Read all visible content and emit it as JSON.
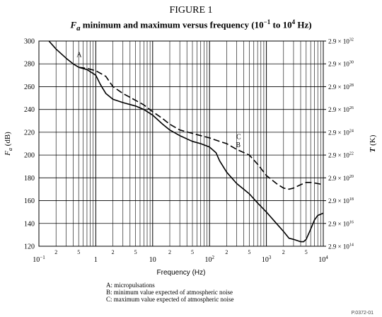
{
  "figure_label": "FIGURE 1",
  "title": {
    "sym": "F",
    "sub": "a",
    "text1": " minimum and maximum versus frequency (10",
    "exp1": "−1",
    "text2": " to 10",
    "exp2": "4",
    "text3": " Hz)"
  },
  "legend": [
    "A:  micropulsations",
    "B:  minimum value expected of atmospheric noise",
    "C:  maximum value expected of atmospheric noise"
  ],
  "ref": "P.0372-01",
  "chart_data": {
    "type": "line",
    "title": "Fa minimum and maximum versus frequency (10−1 to 104 Hz)",
    "xlabel": "Frequency (Hz)",
    "ylabel": "Fa (dB)",
    "y2label": "T (K)",
    "xscale": "log",
    "xlim": [
      0.1,
      10000
    ],
    "ylim": [
      120,
      300
    ],
    "grid": true,
    "decade_ticks": [
      {
        "x": 0.1,
        "label": "10",
        "exp": "−1"
      },
      {
        "x": 1,
        "label": "1",
        "exp": ""
      },
      {
        "x": 10,
        "label": "10",
        "exp": ""
      },
      {
        "x": 100,
        "label": "10",
        "exp": "2"
      },
      {
        "x": 1000,
        "label": "10",
        "exp": "3"
      },
      {
        "x": 10000,
        "label": "10",
        "exp": "4"
      }
    ],
    "minor_tick_labels": [
      "2",
      "5"
    ],
    "yticks": [
      120,
      140,
      160,
      180,
      200,
      220,
      240,
      260,
      280,
      300
    ],
    "right_ticks": [
      {
        "y": 300,
        "exp": "32"
      },
      {
        "y": 280,
        "exp": "30"
      },
      {
        "y": 260,
        "exp": "28"
      },
      {
        "y": 240,
        "exp": "26"
      },
      {
        "y": 220,
        "exp": "24"
      },
      {
        "y": 200,
        "exp": "22"
      },
      {
        "y": 180,
        "exp": "20"
      },
      {
        "y": 160,
        "exp": "18"
      },
      {
        "y": 140,
        "exp": "16"
      },
      {
        "y": 120,
        "exp": "14"
      }
    ],
    "right_tick_mantissa": "2.9 × 10",
    "series": [
      {
        "name": "A",
        "dash": false,
        "x": [
          0.15,
          0.2,
          0.3,
          0.4,
          0.5
        ],
        "y": [
          300,
          293,
          285,
          280,
          277
        ]
      },
      {
        "name": "B",
        "dash": false,
        "x": [
          0.5,
          0.7,
          1,
          1.2,
          1.5,
          2,
          3,
          5,
          7,
          10,
          15,
          20,
          30,
          50,
          70,
          100,
          130,
          150,
          200,
          300,
          500,
          700,
          1000,
          1500,
          2000,
          2500,
          3000,
          4000,
          4500,
          5000,
          6000,
          7000,
          8000,
          10000
        ],
        "y": [
          277,
          275,
          270,
          262,
          254,
          249,
          246,
          243,
          240,
          235,
          227,
          222,
          217,
          212,
          210,
          207,
          202,
          195,
          185,
          175,
          166,
          158,
          150,
          140,
          133,
          127,
          126,
          124,
          124,
          126,
          135,
          143,
          147,
          149
        ]
      },
      {
        "name": "C",
        "dash": true,
        "x": [
          0.5,
          0.7,
          1,
          1.5,
          2,
          3,
          5,
          7,
          10,
          15,
          20,
          30,
          50,
          70,
          100,
          150,
          200,
          300,
          500,
          700,
          1000,
          1500,
          2000,
          2500,
          3000,
          4000,
          5000,
          6000,
          8000,
          10000
        ],
        "y": [
          277,
          276,
          274,
          269,
          260,
          254,
          248,
          244,
          238,
          232,
          227,
          222,
          219,
          217,
          215,
          212,
          210,
          205,
          200,
          192,
          182,
          175,
          171,
          170,
          171,
          174,
          176,
          176,
          175,
          174
        ]
      }
    ],
    "curve_labels": [
      {
        "text": "A",
        "x": 0.46,
        "y": 286
      },
      {
        "text": "B",
        "x": 290,
        "y": 207
      },
      {
        "text": "C",
        "x": 295,
        "y": 214
      }
    ]
  }
}
